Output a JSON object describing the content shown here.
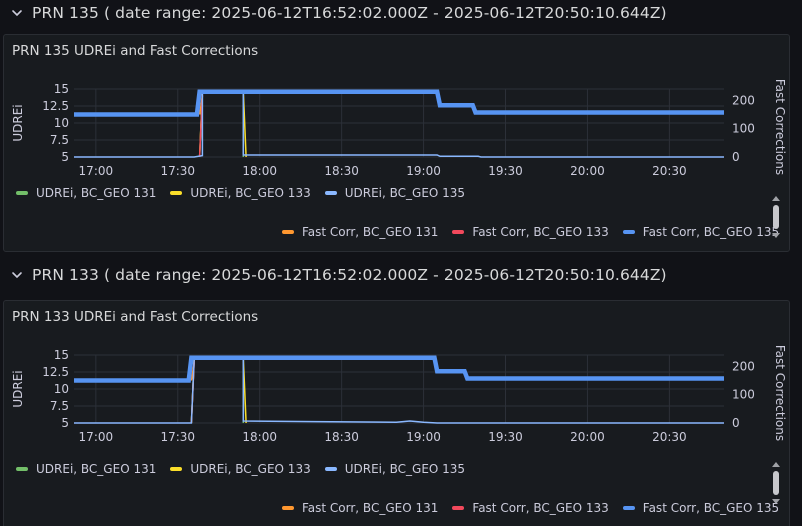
{
  "colors": {
    "udrei_131": "#73bf69",
    "udrei_133": "#fade2a",
    "udrei_135": "#8ab8ff",
    "fc_131": "#ff9830",
    "fc_133": "#f2495c",
    "fc_135": "#5794f2",
    "grid": "#2c3038"
  },
  "rows": [
    {
      "header": "PRN 135 ( date range: 2025-06-12T16:52:02.000Z - 2025-06-12T20:50:10.644Z)",
      "panel_title": "PRN 135 UDREi and Fast Corrections",
      "chevron_icon": "chevron-down-icon",
      "left_axis_label": "UDREi",
      "right_axis_label": "Fast Corrections",
      "legend_udrei": [
        "UDREi, BC_GEO 131",
        "UDREi, BC_GEO 133",
        "UDREi, BC_GEO 135"
      ],
      "legend_fc": [
        "Fast Corr, BC_GEO 131",
        "Fast Corr, BC_GEO 133",
        "Fast Corr, BC_GEO 135"
      ]
    },
    {
      "header": "PRN 133 ( date range: 2025-06-12T16:52:02.000Z - 2025-06-12T20:50:10.644Z)",
      "panel_title": "PRN 133 UDREi and Fast Corrections",
      "chevron_icon": "chevron-down-icon",
      "left_axis_label": "UDREi",
      "right_axis_label": "Fast Corrections",
      "legend_udrei": [
        "UDREi, BC_GEO 131",
        "UDREi, BC_GEO 133",
        "UDREi, BC_GEO 135"
      ],
      "legend_fc": [
        "Fast Corr, BC_GEO 131",
        "Fast Corr, BC_GEO 133",
        "Fast Corr, BC_GEO 135"
      ]
    }
  ],
  "chart_data": [
    {
      "type": "line",
      "title": "PRN 135 UDREi and Fast Corrections",
      "ylabel": "UDREi",
      "y2label": "Fast Corrections",
      "x_ticks": [
        "17:00",
        "17:30",
        "18:00",
        "18:30",
        "19:00",
        "19:30",
        "20:00",
        "20:30"
      ],
      "y_ticks": [
        "15",
        "12.5",
        "10",
        "7.5",
        "5"
      ],
      "y2_ticks": [
        "200",
        "100",
        "0"
      ],
      "xlim": [
        "16:52",
        "20:50"
      ],
      "ylim": [
        5,
        15
      ],
      "y2lim": [
        0,
        240
      ],
      "series": [
        {
          "name": "UDREi, BC_GEO 131",
          "axis": "left",
          "points": [
            [
              "17:38",
              5
            ],
            [
              "17:39",
              14.6
            ],
            [
              "17:54",
              14.6
            ],
            [
              "17:54",
              5
            ]
          ]
        },
        {
          "name": "UDREi, BC_GEO 133",
          "axis": "left",
          "points": [
            [
              "17:38",
              5
            ],
            [
              "17:39",
              14.7
            ],
            [
              "17:54",
              14.7
            ],
            [
              "17:55",
              5
            ]
          ]
        },
        {
          "name": "UDREi, BC_GEO 135",
          "axis": "left",
          "points": [
            [
              "16:52",
              5
            ],
            [
              "17:36",
              5
            ],
            [
              "17:39",
              5.2
            ],
            [
              "17:39",
              14.5
            ],
            [
              "17:54",
              14.5
            ],
            [
              "17:54",
              5.3
            ],
            [
              "19:05",
              5.3
            ],
            [
              "19:06",
              5.1
            ],
            [
              "19:20",
              5.1
            ],
            [
              "19:21",
              5.0
            ],
            [
              "20:50",
              5.0
            ]
          ]
        },
        {
          "name": "Fast Corr, BC_GEO 131",
          "axis": "right",
          "points": [
            [
              "17:38",
              150
            ],
            [
              "17:39",
              215
            ]
          ]
        },
        {
          "name": "Fast Corr, BC_GEO 133",
          "axis": "right",
          "points": [
            [
              "17:38",
              0
            ],
            [
              "17:39",
              220
            ]
          ]
        },
        {
          "name": "Fast Corr, BC_GEO 135",
          "axis": "right",
          "points": [
            [
              "16:52",
              150
            ],
            [
              "17:37",
              150
            ],
            [
              "17:38",
              230
            ],
            [
              "19:05",
              230
            ],
            [
              "19:06",
              183
            ],
            [
              "19:18",
              183
            ],
            [
              "19:19",
              157
            ],
            [
              "20:50",
              157
            ]
          ]
        }
      ]
    },
    {
      "type": "line",
      "title": "PRN 133 UDREi and Fast Corrections",
      "ylabel": "UDREi",
      "y2label": "Fast Corrections",
      "x_ticks": [
        "17:00",
        "17:30",
        "18:00",
        "18:30",
        "19:00",
        "19:30",
        "20:00",
        "20:30"
      ],
      "y_ticks": [
        "15",
        "12.5",
        "10",
        "7.5",
        "5"
      ],
      "y2_ticks": [
        "200",
        "100",
        "0"
      ],
      "xlim": [
        "16:52",
        "20:50"
      ],
      "ylim": [
        5,
        15
      ],
      "y2lim": [
        0,
        240
      ],
      "series": [
        {
          "name": "UDREi, BC_GEO 131",
          "axis": "left",
          "points": [
            [
              "17:35",
              5
            ],
            [
              "17:36",
              14.5
            ],
            [
              "17:54",
              14.5
            ],
            [
              "17:54",
              5
            ]
          ]
        },
        {
          "name": "UDREi, BC_GEO 133",
          "axis": "left",
          "points": [
            [
              "17:35",
              5
            ],
            [
              "17:36",
              14.6
            ],
            [
              "17:54",
              14.6
            ],
            [
              "17:55",
              5
            ]
          ]
        },
        {
          "name": "UDREi, BC_GEO 135",
          "axis": "left",
          "points": [
            [
              "16:52",
              5
            ],
            [
              "17:35",
              5
            ],
            [
              "17:36",
              14.5
            ],
            [
              "17:54",
              14.5
            ],
            [
              "17:54",
              5.3
            ],
            [
              "18:20",
              5.2
            ],
            [
              "18:50",
              5.1
            ],
            [
              "18:55",
              5.3
            ],
            [
              "19:00",
              5.1
            ],
            [
              "19:05",
              5.0
            ],
            [
              "20:50",
              5.0
            ]
          ]
        },
        {
          "name": "Fast Corr, BC_GEO 131",
          "axis": "right",
          "points": [
            [
              "17:35",
              150
            ],
            [
              "17:36",
              215
            ]
          ]
        },
        {
          "name": "Fast Corr, BC_GEO 133",
          "axis": "right",
          "points": [
            [
              "17:35",
              0
            ],
            [
              "17:36",
              220
            ]
          ]
        },
        {
          "name": "Fast Corr, BC_GEO 135",
          "axis": "right",
          "points": [
            [
              "16:52",
              150
            ],
            [
              "17:34",
              150
            ],
            [
              "17:35",
              230
            ],
            [
              "19:04",
              230
            ],
            [
              "19:05",
              183
            ],
            [
              "19:15",
              183
            ],
            [
              "19:16",
              157
            ],
            [
              "20:50",
              157
            ]
          ]
        }
      ]
    }
  ]
}
